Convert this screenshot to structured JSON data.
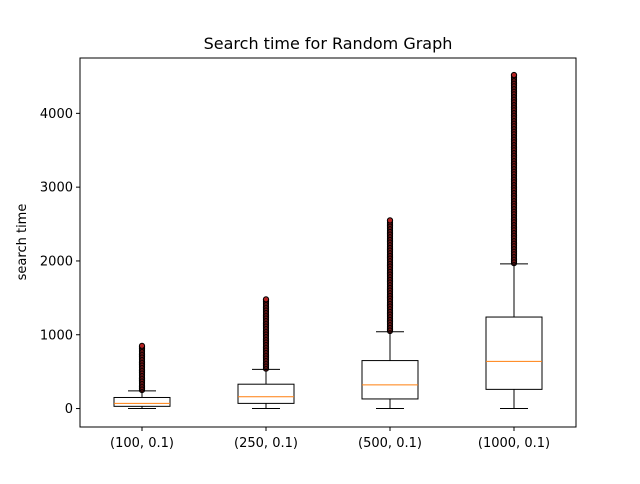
{
  "chart_data": {
    "type": "box",
    "title": "Search time for Random Graph",
    "xlabel": "",
    "ylabel": "search time",
    "ylim": [
      -250,
      4750
    ],
    "yticks": [
      0,
      1000,
      2000,
      3000,
      4000
    ],
    "ytick_labels": [
      "0",
      "1000",
      "2000",
      "3000",
      "4000"
    ],
    "categories": [
      "(100, 0.1)",
      "(250, 0.1)",
      "(500, 0.1)",
      "(1000, 0.1)"
    ],
    "boxes": [
      {
        "whisker_low": 0,
        "q1": 30,
        "median": 70,
        "q3": 150,
        "whisker_high": 240,
        "outlier_min": 250,
        "outlier_max": 850
      },
      {
        "whisker_low": 0,
        "q1": 70,
        "median": 160,
        "q3": 330,
        "whisker_high": 530,
        "outlier_min": 540,
        "outlier_max": 1480
      },
      {
        "whisker_low": 0,
        "q1": 130,
        "median": 320,
        "q3": 650,
        "whisker_high": 1040,
        "outlier_min": 1050,
        "outlier_max": 2550
      },
      {
        "whisker_low": 0,
        "q1": 260,
        "median": 640,
        "q3": 1240,
        "whisker_high": 1960,
        "outlier_min": 1970,
        "outlier_max": 4520
      }
    ],
    "grid": false,
    "legend": "none",
    "colors": {
      "box": "#000000",
      "median": "#ff7f0e",
      "outlier_face": "#b22222",
      "outlier_edge": "#000000"
    }
  }
}
